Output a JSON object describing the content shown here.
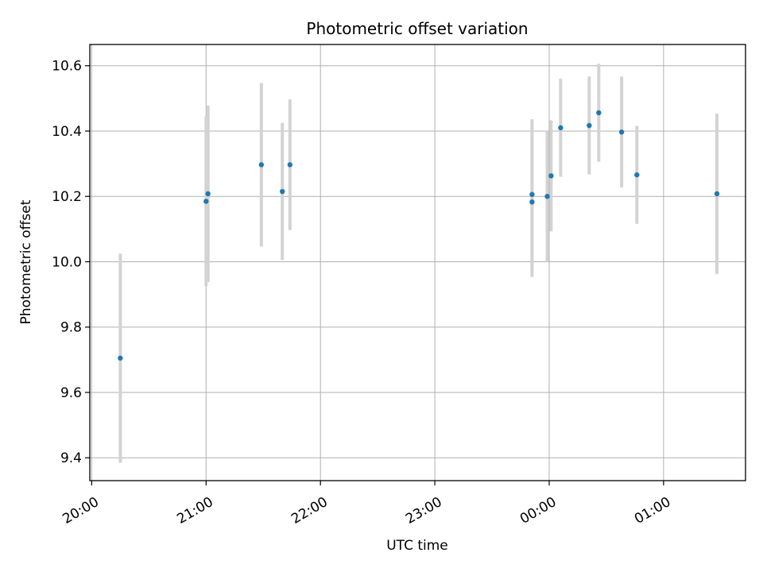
{
  "chart_data": {
    "type": "scatter",
    "title": "Photometric offset variation",
    "xlabel": "UTC time",
    "ylabel": "Photometric offset",
    "x_axis": "time",
    "xlim": [
      "19:59",
      "01:43"
    ],
    "ylim": [
      9.33,
      10.665
    ],
    "x_ticks": [
      "20:00",
      "21:00",
      "22:00",
      "23:00",
      "00:00",
      "01:00"
    ],
    "y_ticks": [
      "9.4",
      "9.6",
      "9.8",
      "10.0",
      "10.2",
      "10.4",
      "10.6"
    ],
    "grid": true,
    "marker_color": "#1f77b4",
    "errorbar_color": "#d3d3d3",
    "points": [
      {
        "t": "20:15",
        "y": 9.705,
        "err": 0.32
      },
      {
        "t": "21:00",
        "y": 10.185,
        "err": 0.26
      },
      {
        "t": "21:01",
        "y": 10.208,
        "err": 0.27
      },
      {
        "t": "21:29",
        "y": 10.297,
        "err": 0.25
      },
      {
        "t": "21:40",
        "y": 10.215,
        "err": 0.21
      },
      {
        "t": "21:44",
        "y": 10.297,
        "err": 0.2
      },
      {
        "t": "23:51",
        "y": 10.183,
        "err": 0.23
      },
      {
        "t": "23:51",
        "y": 10.206,
        "err": 0.23
      },
      {
        "t": "23:59",
        "y": 10.2,
        "err": 0.2
      },
      {
        "t": "00:01",
        "y": 10.263,
        "err": 0.17
      },
      {
        "t": "00:06",
        "y": 10.41,
        "err": 0.15
      },
      {
        "t": "00:21",
        "y": 10.417,
        "err": 0.15
      },
      {
        "t": "00:26",
        "y": 10.456,
        "err": 0.15
      },
      {
        "t": "00:38",
        "y": 10.397,
        "err": 0.17
      },
      {
        "t": "00:46",
        "y": 10.266,
        "err": 0.15
      },
      {
        "t": "01:28",
        "y": 10.208,
        "err": 0.245
      }
    ]
  }
}
